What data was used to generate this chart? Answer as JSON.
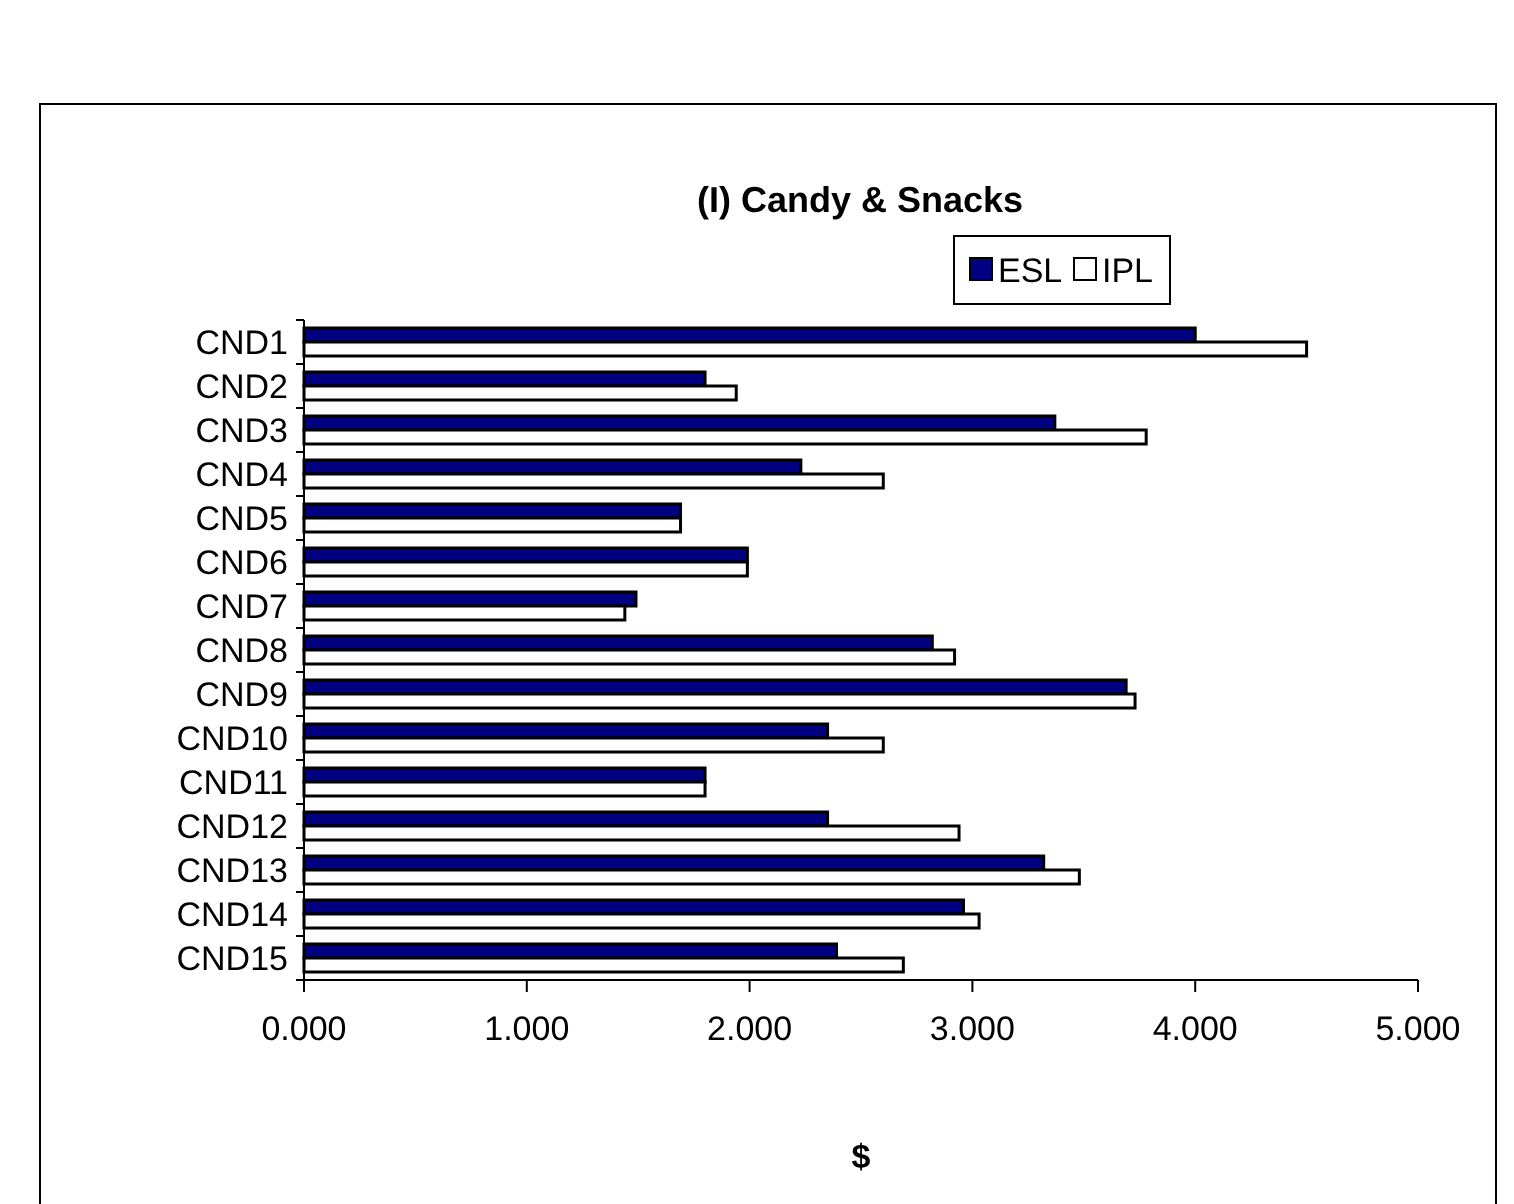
{
  "chart_data": {
    "type": "bar",
    "orientation": "horizontal",
    "title": "(I) Candy & Snacks",
    "xlabel": "$",
    "categories": [
      "CND1",
      "CND2",
      "CND3",
      "CND4",
      "CND5",
      "CND6",
      "CND7",
      "CND8",
      "CND9",
      "CND10",
      "CND11",
      "CND12",
      "CND13",
      "CND14",
      "CND15"
    ],
    "series": [
      {
        "name": "ESL",
        "color": "#000080",
        "values": [
          4.0,
          1.8,
          3.37,
          2.23,
          1.69,
          1.99,
          1.49,
          2.82,
          3.69,
          2.35,
          1.8,
          2.35,
          3.32,
          2.96,
          2.39
        ]
      },
      {
        "name": "IPL",
        "color": "#ffffff",
        "values": [
          4.5,
          1.94,
          3.78,
          2.6,
          1.69,
          1.99,
          1.44,
          2.92,
          3.73,
          2.6,
          1.8,
          2.94,
          3.48,
          3.03,
          2.69
        ]
      }
    ],
    "xlim": [
      0,
      5
    ],
    "xticks": [
      {
        "value": 0,
        "label": "0.000"
      },
      {
        "value": 1,
        "label": "1.000"
      },
      {
        "value": 2,
        "label": "2.000"
      },
      {
        "value": 3,
        "label": "3.000"
      },
      {
        "value": 4,
        "label": "4.000"
      },
      {
        "value": 5,
        "label": "5.000"
      }
    ],
    "grid": false,
    "legend": "top right"
  }
}
